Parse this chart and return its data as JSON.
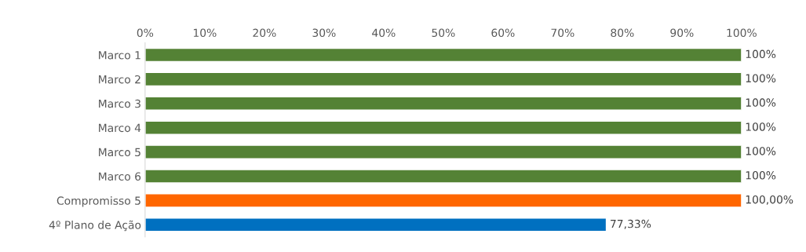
{
  "chart_data": {
    "type": "bar",
    "orientation": "horizontal",
    "categories": [
      "Marco 1",
      "Marco 2",
      "Marco 3",
      "Marco 4",
      "Marco 5",
      "Marco 6",
      "Compromisso 5",
      "4º Plano de Ação"
    ],
    "values": [
      100,
      100,
      100,
      100,
      100,
      100,
      100,
      77.33
    ],
    "colors": [
      "#548235",
      "#548235",
      "#548235",
      "#548235",
      "#548235",
      "#548235",
      "#ff6600",
      "#0070c0"
    ],
    "value_labels": [
      "100%",
      "100%",
      "100%",
      "100%",
      "100%",
      "100%",
      "100,00%",
      "77,33%"
    ],
    "xlim": [
      0,
      100
    ],
    "xticks": [
      {
        "value": 0,
        "label": "0%"
      },
      {
        "value": 10,
        "label": "10%"
      },
      {
        "value": 20,
        "label": "20%"
      },
      {
        "value": 30,
        "label": "30%"
      },
      {
        "value": 40,
        "label": "40%"
      },
      {
        "value": 50,
        "label": "50%"
      },
      {
        "value": 60,
        "label": "60%"
      },
      {
        "value": 70,
        "label": "70%"
      },
      {
        "value": 80,
        "label": "80%"
      },
      {
        "value": 90,
        "label": "90%"
      },
      {
        "value": 100,
        "label": "100%"
      }
    ],
    "grid": false,
    "legend": false
  }
}
